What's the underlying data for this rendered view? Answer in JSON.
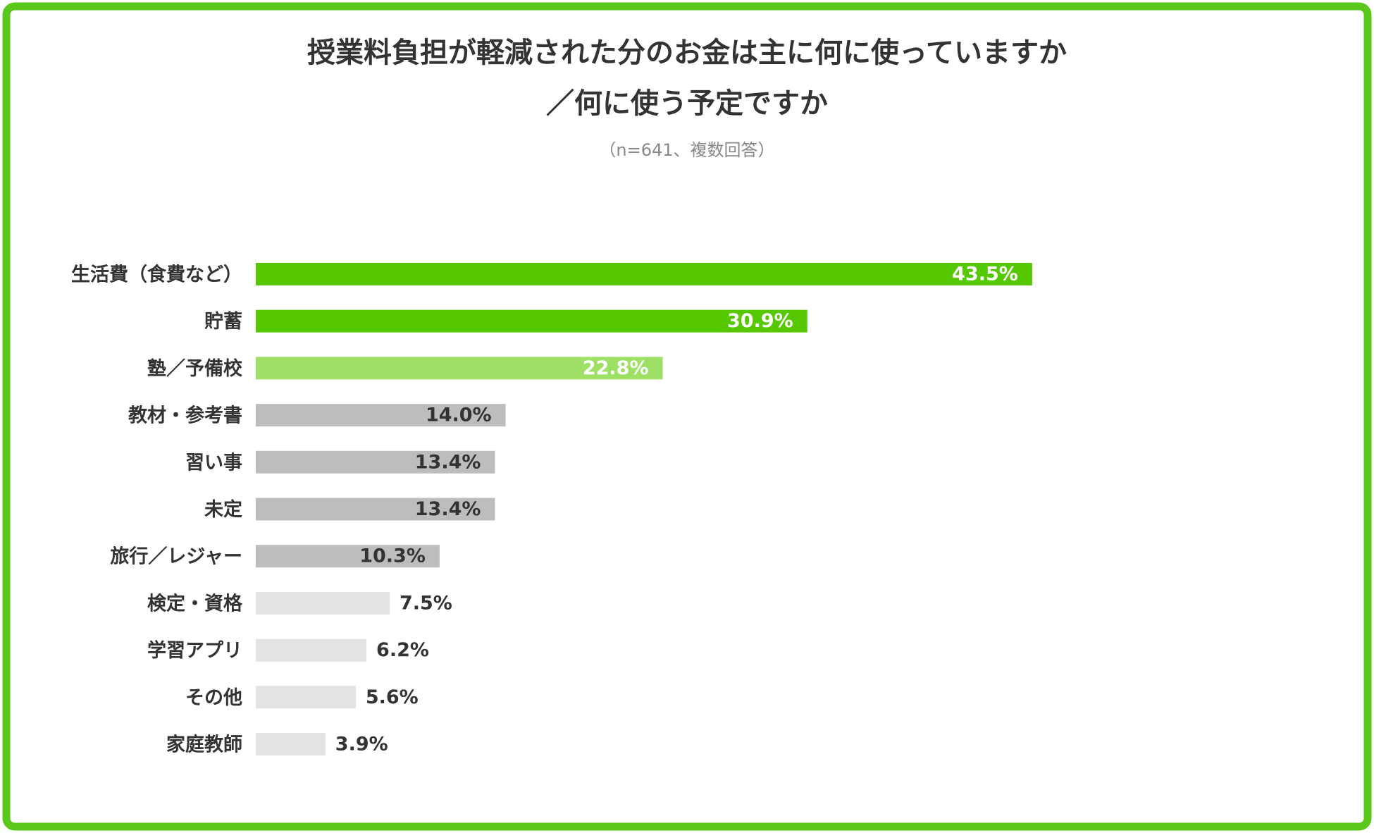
{
  "chart_data": {
    "type": "hbar",
    "title": [
      "授業料負担が軽減された分のお金は主に何に使っていますか",
      "／何に使う予定ですか"
    ],
    "subtitle": "（n=641、複数回答）",
    "categories": [
      "生活費（食費など）",
      "貯蓄",
      "塾／予備校",
      "教材・参考書",
      "習い事",
      "未定",
      "旅行／レジャー",
      "検定・資格",
      "学習アプリ",
      "その他",
      "家庭教師"
    ],
    "values": [
      43.5,
      30.9,
      22.8,
      14.0,
      13.4,
      13.4,
      10.3,
      7.5,
      6.2,
      5.6,
      3.9
    ],
    "value_labels": [
      "43.5%",
      "30.9%",
      "22.8%",
      "14.0%",
      "13.4%",
      "13.4%",
      "10.3%",
      "7.5%",
      "6.2%",
      "5.6%",
      "3.9%"
    ],
    "colors": [
      "#55c800",
      "#55c800",
      "#9de065",
      "#bdbdbd",
      "#bdbdbd",
      "#bdbdbd",
      "#bdbdbd",
      "#e3e3e3",
      "#e3e3e3",
      "#e3e3e3",
      "#e3e3e3"
    ],
    "value_label_colors": [
      "#ffffff",
      "#ffffff",
      "#ffffff",
      "#333333",
      "#333333",
      "#333333",
      "#333333",
      "#333333",
      "#333333",
      "#333333",
      "#333333"
    ]
  }
}
